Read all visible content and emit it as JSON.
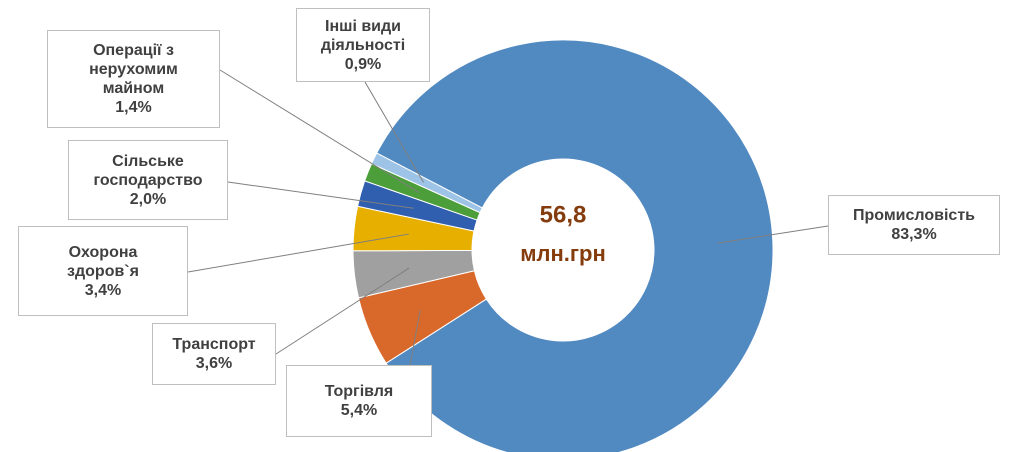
{
  "chart_data": {
    "type": "donut",
    "center_text": [
      "56,8",
      "млн.грн"
    ],
    "categories": [
      "Промисловість",
      "Торгівля",
      "Транспорт",
      "Охорона здоров`я",
      "Сільське господарство",
      "Операції з нерухомим майном",
      "Інші види діяльності"
    ],
    "values": [
      83.3,
      5.4,
      3.6,
      3.4,
      2.0,
      1.4,
      0.9
    ],
    "value_labels": [
      "83,3%",
      "5,4%",
      "3,6%",
      "3,4%",
      "2,0%",
      "1,4%",
      "0,9%"
    ],
    "colors": [
      "#5189c1",
      "#d9692b",
      "#a0a0a0",
      "#e7af00",
      "#2f5fae",
      "#4c9e3a",
      "#9dc3e6"
    ]
  }
}
